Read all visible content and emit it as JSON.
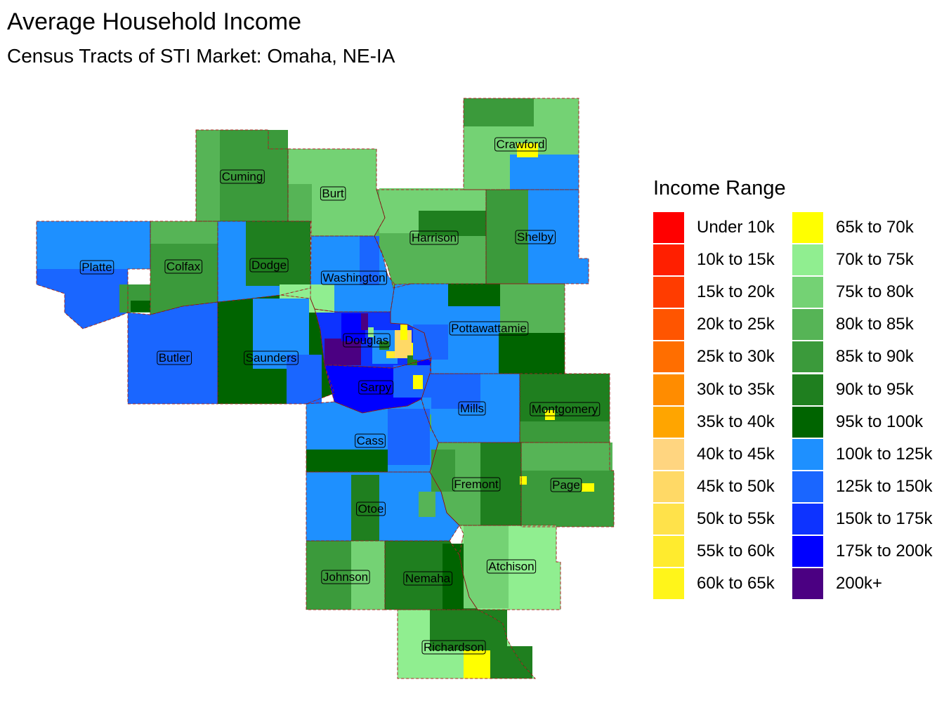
{
  "title": "Average Household Income",
  "subtitle": "Census Tracts of STI Market: Omaha, NE-IA",
  "legend": {
    "title": "Income Range",
    "items": [
      {
        "label": "Under 10k",
        "color": "#ff0000"
      },
      {
        "label": "10k to 15k",
        "color": "#ff1f00"
      },
      {
        "label": "15k to 20k",
        "color": "#ff3c00"
      },
      {
        "label": "20k to 25k",
        "color": "#ff5500"
      },
      {
        "label": "25k to 30k",
        "color": "#ff6e00"
      },
      {
        "label": "30k to 35k",
        "color": "#ff8c00"
      },
      {
        "label": "35k to 40k",
        "color": "#ffa500"
      },
      {
        "label": "40k to 45k",
        "color": "#ffd580"
      },
      {
        "label": "45k to 50k",
        "color": "#ffd966"
      },
      {
        "label": "50k to 55k",
        "color": "#ffe24a"
      },
      {
        "label": "55k to 60k",
        "color": "#ffeb2e"
      },
      {
        "label": "60k to 65k",
        "color": "#fff51a"
      },
      {
        "label": "65k to 70k",
        "color": "#ffff00"
      },
      {
        "label": "70k to 75k",
        "color": "#90ee90"
      },
      {
        "label": "75k to 80k",
        "color": "#74d274"
      },
      {
        "label": "80k to 85k",
        "color": "#56b456"
      },
      {
        "label": "85k to 90k",
        "color": "#3b9a3b"
      },
      {
        "label": "90k to 95k",
        "color": "#1f7f1f"
      },
      {
        "label": "95k to 100k",
        "color": "#006400"
      },
      {
        "label": "100k to 125k",
        "color": "#1e90ff"
      },
      {
        "label": "125k to 150k",
        "color": "#1a66ff"
      },
      {
        "label": "150k to 175k",
        "color": "#0d33ff"
      },
      {
        "label": "175k to 200k",
        "color": "#0000ff"
      },
      {
        "label": "200k+",
        "color": "#4b0082"
      }
    ]
  },
  "counties": [
    {
      "name": "Platte",
      "fill": "#1a66ff"
    },
    {
      "name": "Colfax",
      "fill": "#3b9a3b"
    },
    {
      "name": "Cuming",
      "fill": "#56b456"
    },
    {
      "name": "Burt",
      "fill": "#74d274"
    },
    {
      "name": "Dodge",
      "fill": "#1e90ff"
    },
    {
      "name": "Washington",
      "fill": "#1e90ff"
    },
    {
      "name": "Harrison",
      "fill": "#56b456"
    },
    {
      "name": "Crawford",
      "fill": "#74d274"
    },
    {
      "name": "Shelby",
      "fill": "#1e90ff"
    },
    {
      "name": "Butler",
      "fill": "#1a66ff"
    },
    {
      "name": "Saunders",
      "fill": "#006400"
    },
    {
      "name": "Douglas",
      "fill": "#0d33ff"
    },
    {
      "name": "Pottawattamie",
      "fill": "#1e90ff"
    },
    {
      "name": "Sarpy",
      "fill": "#0000ff"
    },
    {
      "name": "Mills",
      "fill": "#1e90ff"
    },
    {
      "name": "Montgomery",
      "fill": "#1f7f1f"
    },
    {
      "name": "Cass",
      "fill": "#1e90ff"
    },
    {
      "name": "Fremont",
      "fill": "#56b456"
    },
    {
      "name": "Page",
      "fill": "#3b9a3b"
    },
    {
      "name": "Otoe",
      "fill": "#1e90ff"
    },
    {
      "name": "Johnson",
      "fill": "#3b9a3b"
    },
    {
      "name": "Nemaha",
      "fill": "#1f7f1f"
    },
    {
      "name": "Atchison",
      "fill": "#90ee90"
    },
    {
      "name": "Richardson",
      "fill": "#90ee90"
    }
  ]
}
